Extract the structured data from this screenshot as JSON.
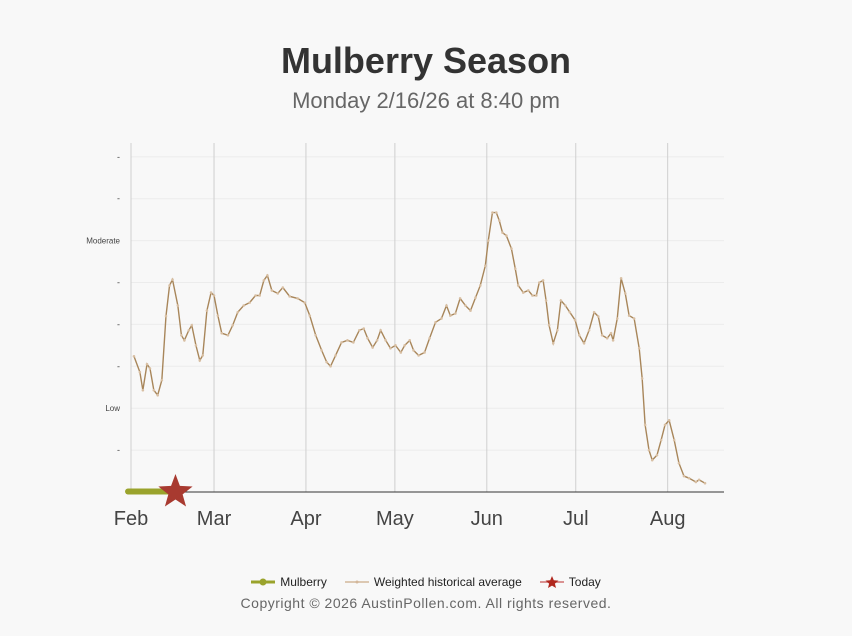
{
  "chart_data": {
    "type": "line",
    "title": "Mulberry Season",
    "subtitle": "Monday 2/16/26 at 8:40 pm",
    "x_unit": "days since Feb 1",
    "xlim": [
      0,
      200
    ],
    "ylim": [
      0,
      8.33
    ],
    "x_ticks": [
      {
        "label": "Feb",
        "day": 0
      },
      {
        "label": "Mar",
        "day": 28
      },
      {
        "label": "Apr",
        "day": 59
      },
      {
        "label": "May",
        "day": 89
      },
      {
        "label": "Jun",
        "day": 120
      },
      {
        "label": "Jul",
        "day": 150
      },
      {
        "label": "Aug",
        "day": 181
      }
    ],
    "y_ticks": [
      {
        "label": "-",
        "value": 1
      },
      {
        "label": "Low",
        "value": 2
      },
      {
        "label": "-",
        "value": 3
      },
      {
        "label": "-",
        "value": 4
      },
      {
        "label": "-",
        "value": 5
      },
      {
        "label": "Moderate",
        "value": 6
      },
      {
        "label": "-",
        "value": 7
      },
      {
        "label": "-",
        "value": 8
      }
    ],
    "series": [
      {
        "name": "Mulberry",
        "color": "#9aa32c",
        "points": [
          [
            -1,
            0
          ],
          [
            15,
            0
          ]
        ]
      },
      {
        "name": "Weighted historical average",
        "color": "#a8865a",
        "points": [
          [
            1,
            3.24
          ],
          [
            3,
            2.86
          ],
          [
            4,
            2.43
          ],
          [
            5.4,
            3.05
          ],
          [
            6.4,
            2.95
          ],
          [
            7.7,
            2.43
          ],
          [
            9,
            2.31
          ],
          [
            10.4,
            2.67
          ],
          [
            11.8,
            4.2
          ],
          [
            13,
            4.93
          ],
          [
            14,
            5.07
          ],
          [
            15.8,
            4.45
          ],
          [
            17,
            3.74
          ],
          [
            18,
            3.62
          ],
          [
            19.5,
            3.86
          ],
          [
            20.5,
            3.98
          ],
          [
            21.9,
            3.5
          ],
          [
            23.2,
            3.14
          ],
          [
            24.2,
            3.26
          ],
          [
            25.6,
            4.33
          ],
          [
            27,
            4.76
          ],
          [
            28,
            4.69
          ],
          [
            29.3,
            4.21
          ],
          [
            30.6,
            3.79
          ],
          [
            32.7,
            3.74
          ],
          [
            34.3,
            3.98
          ],
          [
            36,
            4.29
          ],
          [
            38,
            4.45
          ],
          [
            40,
            4.52
          ],
          [
            42,
            4.69
          ],
          [
            43.4,
            4.69
          ],
          [
            44.8,
            5.05
          ],
          [
            46,
            5.17
          ],
          [
            47.5,
            4.81
          ],
          [
            49.5,
            4.74
          ],
          [
            51.2,
            4.88
          ],
          [
            53.5,
            4.67
          ],
          [
            56.2,
            4.62
          ],
          [
            58.6,
            4.52
          ],
          [
            60.3,
            4.21
          ],
          [
            62.3,
            3.74
          ],
          [
            64.3,
            3.38
          ],
          [
            66,
            3.1
          ],
          [
            67.3,
            3.0
          ],
          [
            69,
            3.26
          ],
          [
            71,
            3.57
          ],
          [
            73,
            3.62
          ],
          [
            75,
            3.57
          ],
          [
            77,
            3.86
          ],
          [
            78.5,
            3.9
          ],
          [
            79.8,
            3.67
          ],
          [
            81.5,
            3.45
          ],
          [
            83,
            3.62
          ],
          [
            84.2,
            3.86
          ],
          [
            85.9,
            3.62
          ],
          [
            87.5,
            3.43
          ],
          [
            89.2,
            3.5
          ],
          [
            91,
            3.33
          ],
          [
            92.3,
            3.5
          ],
          [
            94,
            3.62
          ],
          [
            95.3,
            3.38
          ],
          [
            97,
            3.26
          ],
          [
            99,
            3.33
          ],
          [
            100.7,
            3.67
          ],
          [
            102.7,
            4.05
          ],
          [
            104.7,
            4.14
          ],
          [
            106.4,
            4.45
          ],
          [
            107.7,
            4.21
          ],
          [
            109.4,
            4.26
          ],
          [
            111,
            4.62
          ],
          [
            112.8,
            4.45
          ],
          [
            114.5,
            4.33
          ],
          [
            116.2,
            4.64
          ],
          [
            117.8,
            4.93
          ],
          [
            119.5,
            5.4
          ],
          [
            120.5,
            6.0
          ],
          [
            121.9,
            6.67
          ],
          [
            123.2,
            6.67
          ],
          [
            124.2,
            6.48
          ],
          [
            125.3,
            6.19
          ],
          [
            126.6,
            6.12
          ],
          [
            128.3,
            5.81
          ],
          [
            129.6,
            5.33
          ],
          [
            130.6,
            4.93
          ],
          [
            132.3,
            4.76
          ],
          [
            134,
            4.81
          ],
          [
            135.4,
            4.69
          ],
          [
            136.7,
            4.69
          ],
          [
            137.7,
            5.0
          ],
          [
            139,
            5.05
          ],
          [
            140,
            4.57
          ],
          [
            141,
            3.98
          ],
          [
            142.4,
            3.55
          ],
          [
            143.8,
            3.86
          ],
          [
            145,
            4.57
          ],
          [
            146.5,
            4.45
          ],
          [
            148,
            4.29
          ],
          [
            149.8,
            4.1
          ],
          [
            151.2,
            3.74
          ],
          [
            152.8,
            3.55
          ],
          [
            154.5,
            3.86
          ],
          [
            156.2,
            4.29
          ],
          [
            157.6,
            4.19
          ],
          [
            158.9,
            3.74
          ],
          [
            160.6,
            3.67
          ],
          [
            161.9,
            3.79
          ],
          [
            162.6,
            3.62
          ],
          [
            164,
            4.14
          ],
          [
            165.3,
            5.1
          ],
          [
            166.7,
            4.74
          ],
          [
            168,
            4.21
          ],
          [
            169.7,
            4.14
          ],
          [
            171.4,
            3.43
          ],
          [
            172.4,
            2.71
          ],
          [
            173.4,
            1.6
          ],
          [
            174.7,
            1.0
          ],
          [
            175.8,
            0.76
          ],
          [
            177.4,
            0.88
          ],
          [
            178.8,
            1.24
          ],
          [
            180.1,
            1.6
          ],
          [
            181.5,
            1.71
          ],
          [
            183.2,
            1.24
          ],
          [
            184.8,
            0.69
          ],
          [
            186.5,
            0.38
          ],
          [
            188.2,
            0.33
          ],
          [
            190.5,
            0.24
          ],
          [
            191.6,
            0.29
          ],
          [
            193.6,
            0.21
          ]
        ]
      }
    ],
    "today": {
      "name": "Today",
      "day": 15,
      "value": 0,
      "color": "#a83a30"
    },
    "legend": {
      "placement": "bottom",
      "items": [
        "Mulberry",
        "Weighted historical average",
        "Today"
      ]
    }
  },
  "copyright": "Copyright © 2026 AustinPollen.com.  All rights reserved."
}
